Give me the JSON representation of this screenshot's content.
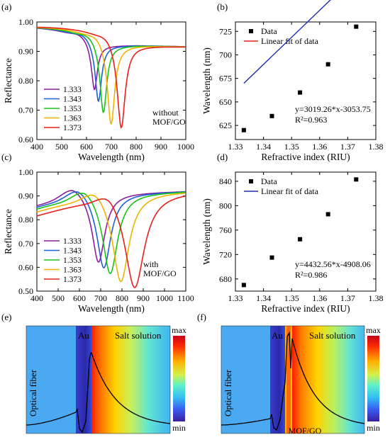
{
  "panel_letters": [
    "(a)",
    "(b)",
    "(c)",
    "(d)",
    "(e)",
    "(f)"
  ],
  "colors": {
    "ri_series": [
      "#8b1d9c",
      "#1f5fd6",
      "#19c219",
      "#f0b400",
      "#e8201a"
    ],
    "fit_b": "#e8201a",
    "fit_d": "#1c2ea8",
    "data_marker": "#000000"
  },
  "chart_data": [
    {
      "panel": "(a)",
      "type": "line",
      "xlabel": "Wavelength (nm)",
      "ylabel": "Reflectance",
      "xlim": [
        400,
        1000
      ],
      "ylim": [
        0.6,
        1.0
      ],
      "xticks": [
        400,
        500,
        600,
        700,
        800,
        900,
        1000
      ],
      "yticks": [
        0.6,
        0.7,
        0.8,
        0.9,
        1.0
      ],
      "ytick_labels": [
        "0.60",
        "0.70",
        "0.80",
        "0.90",
        "1.00"
      ],
      "annotation": [
        "without",
        "MOF/GO"
      ],
      "legend_position": "bottom-left",
      "series": [
        {
          "name": "1.333",
          "resonance_nm": 632,
          "min_reflectance": 0.768,
          "width_nm": 28
        },
        {
          "name": "1.343",
          "resonance_nm": 648,
          "min_reflectance": 0.728,
          "width_nm": 30
        },
        {
          "name": "1.353",
          "resonance_nm": 668,
          "min_reflectance": 0.69,
          "width_nm": 32
        },
        {
          "name": "1.363",
          "resonance_nm": 699,
          "min_reflectance": 0.651,
          "width_nm": 35
        },
        {
          "name": "1.373",
          "resonance_nm": 740,
          "min_reflectance": 0.638,
          "width_nm": 38
        }
      ]
    },
    {
      "panel": "(b)",
      "type": "scatter",
      "xlabel": "Refractive index (RIU)",
      "ylabel": "Wavelength (nm)",
      "xlim": [
        1.33,
        1.38
      ],
      "ylim": [
        610,
        735
      ],
      "xticks": [
        1.33,
        1.34,
        1.35,
        1.36,
        1.37,
        1.38
      ],
      "yticks": [
        625,
        650,
        675,
        700,
        725
      ],
      "legend": [
        "Data",
        "Linear fit of data"
      ],
      "legend_position": "top-left",
      "x": [
        1.333,
        1.343,
        1.353,
        1.363,
        1.373
      ],
      "y": [
        620,
        635,
        660,
        690,
        730
      ],
      "fit": {
        "slope": 3019.26,
        "intercept": -3053.75,
        "x_range": [
          1.333,
          1.373
        ]
      },
      "equation": "y=3019.26*x-3053.75",
      "r2": "R²=0.963"
    },
    {
      "panel": "(c)",
      "type": "line",
      "xlabel": "Wavelength (nm)",
      "ylabel": "Reflectance",
      "xlim": [
        400,
        1100
      ],
      "ylim": [
        0.5,
        1.0
      ],
      "xticks": [
        400,
        500,
        600,
        700,
        800,
        900,
        1000,
        1100
      ],
      "yticks": [
        0.5,
        0.6,
        0.7,
        0.8,
        0.9,
        1.0
      ],
      "ytick_labels": [
        "0.50",
        "0.60",
        "0.70",
        "0.80",
        "0.90",
        "1.00"
      ],
      "annotation": [
        "with",
        "MOF/GO"
      ],
      "legend_position": "bottom-left",
      "series": [
        {
          "name": "1.333",
          "resonance_nm": 690,
          "min_reflectance": 0.622,
          "width_nm": 72
        },
        {
          "name": "1.343",
          "resonance_nm": 715,
          "min_reflectance": 0.598,
          "width_nm": 78
        },
        {
          "name": "1.353",
          "resonance_nm": 745,
          "min_reflectance": 0.574,
          "width_nm": 84
        },
        {
          "name": "1.363",
          "resonance_nm": 795,
          "min_reflectance": 0.54,
          "width_nm": 92
        },
        {
          "name": "1.373",
          "resonance_nm": 860,
          "min_reflectance": 0.515,
          "width_nm": 110
        }
      ]
    },
    {
      "panel": "(d)",
      "type": "scatter",
      "xlabel": "Refractive index (RIU)",
      "ylabel": "Wavelength (nm)",
      "xlim": [
        1.33,
        1.38
      ],
      "ylim": [
        660,
        855
      ],
      "xticks": [
        1.33,
        1.34,
        1.35,
        1.36,
        1.37,
        1.38
      ],
      "yticks": [
        680,
        720,
        760,
        800,
        840
      ],
      "legend": [
        "Data",
        "Linear fit of data"
      ],
      "legend_position": "top-left",
      "x": [
        1.333,
        1.343,
        1.353,
        1.363,
        1.373
      ],
      "y": [
        670,
        715,
        745,
        786,
        843
      ],
      "fit": {
        "slope": 4432.56,
        "intercept": -4908.06,
        "x_range": [
          1.333,
          1.373
        ]
      },
      "equation": "y=4432.56*x-4908.06",
      "r2": "R²=0.986"
    },
    {
      "panel": "(e)",
      "type": "heatmap",
      "regions": [
        "Optical fiber",
        "Au",
        "Salt solution"
      ],
      "colorbar": {
        "max_label": "max",
        "min_label": "min"
      }
    },
    {
      "panel": "(f)",
      "type": "heatmap",
      "regions": [
        "Optical fiber",
        "Au",
        "Salt solution"
      ],
      "bottom_label": "MOF/GO",
      "colorbar": {
        "max_label": "max",
        "min_label": "min"
      }
    }
  ]
}
